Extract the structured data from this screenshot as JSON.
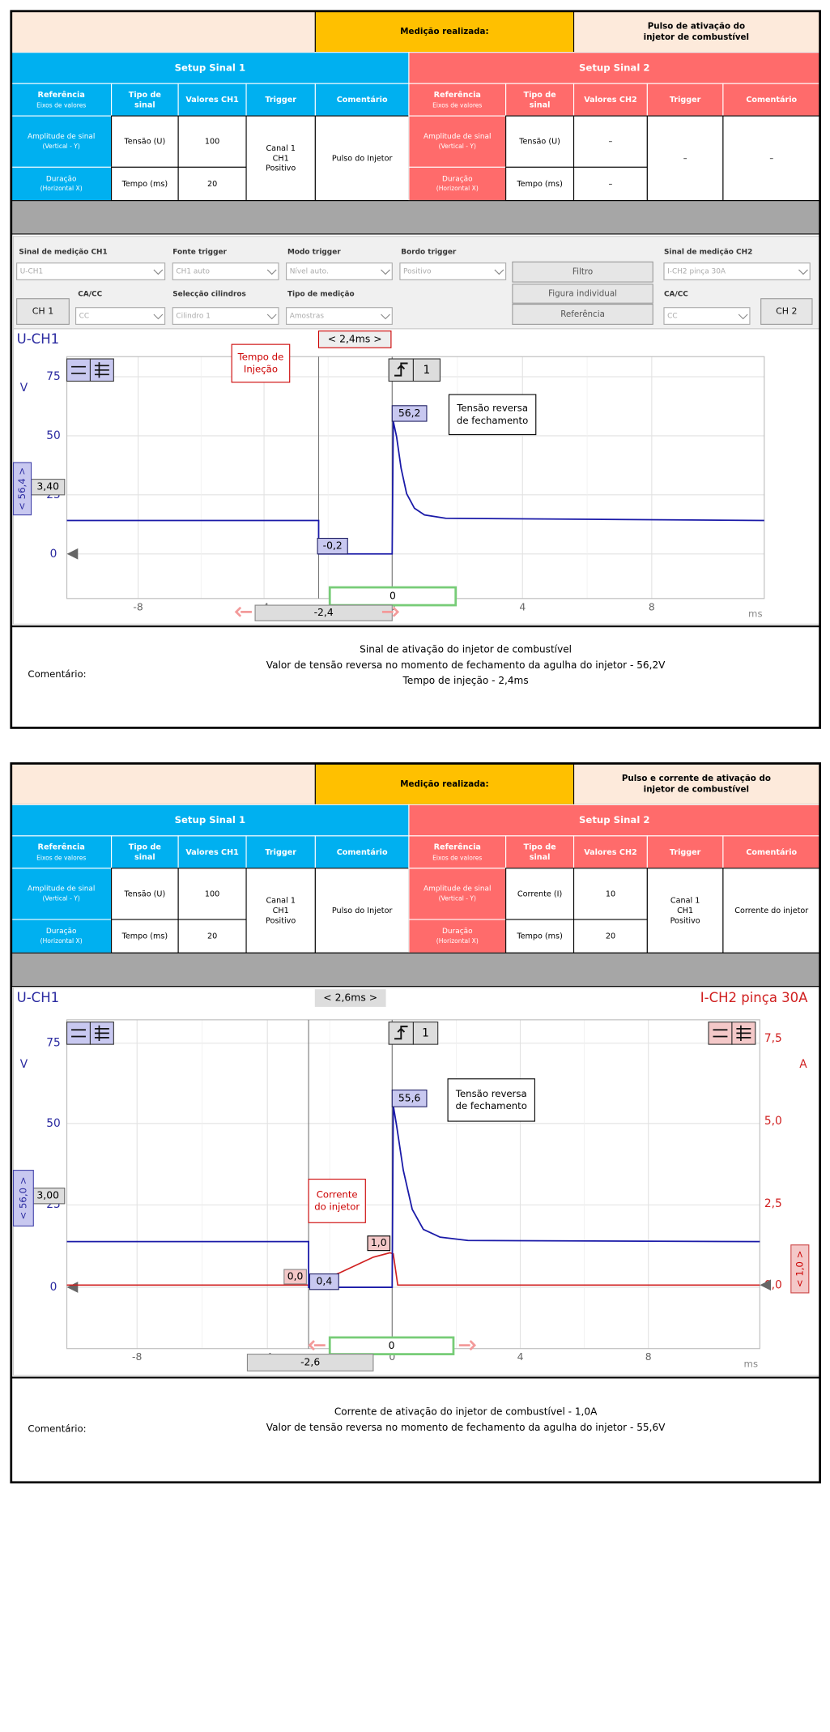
{
  "panels": [
    {
      "header": {
        "label": "Medição realizada:",
        "title": [
          "Pulso de ativação do",
          "injetor de combustível"
        ]
      },
      "signal1": {
        "title": "Setup Sinal 1",
        "head": {
          "ref": "Referência",
          "ref_sub": "Eixos de valores",
          "type": [
            "Tipo de",
            "sinal"
          ],
          "values": "Valores CH1",
          "trigger": "Trigger",
          "comment": "Comentário"
        },
        "rows": [
          {
            "ref": "Amplitude de sinal",
            "ref_sub": "(Vertical - Y)",
            "type": "Tensão (U)",
            "value": "100"
          },
          {
            "ref": "Duração",
            "ref_sub": "(Horizontal X)",
            "type": "Tempo (ms)",
            "value": "20"
          }
        ],
        "trigger": [
          "Canal 1",
          "CH1",
          "Positivo"
        ],
        "comment": "Pulso do Injetor"
      },
      "signal2": {
        "title": "Setup Sinal 2",
        "head": {
          "ref": "Referência",
          "ref_sub": "Eixos de valores",
          "type": [
            "Tipo de",
            "sinal"
          ],
          "values": "Valores CH2",
          "trigger": "Trigger",
          "comment": "Comentário"
        },
        "rows": [
          {
            "ref": "Amplitude de sinal",
            "ref_sub": "(Vertical - Y)",
            "type": "Tensão (U)",
            "value": "–"
          },
          {
            "ref": "Duração",
            "ref_sub": "(Horizontal X)",
            "type": "Tempo (ms)",
            "value": "–"
          }
        ],
        "trigger": "–",
        "comment": "–"
      },
      "controls": {
        "fields": [
          {
            "label": "Sinal de medição CH1",
            "value": "U-CH1"
          },
          {
            "label": "Fonte trigger",
            "value": "CH1 auto"
          },
          {
            "label": "Modo trigger",
            "value": "Nível auto."
          },
          {
            "label": "Bordo trigger",
            "value": "Positivo"
          },
          {
            "label": "Sinal de medição CH2",
            "value": "I-CH2 pinça 30A"
          },
          {
            "label": "CA/CC",
            "value": "CC"
          },
          {
            "label": "Selecção cilindros",
            "value": "Cilindro 1"
          },
          {
            "label": "Tipo de medição",
            "value": "Amostras"
          },
          {
            "label": "CA/CC",
            "value": "CC"
          }
        ],
        "buttons": [
          "Filtro",
          "Figura individual",
          "Referência",
          "CH 1",
          "CH 2"
        ]
      },
      "scope": {
        "ch1": "U-CH1",
        "unit": "V",
        "yticks": [
          "75",
          "50",
          "25",
          "0"
        ],
        "xticks": [
          "-8",
          "-4",
          "0",
          "4",
          "8"
        ],
        "xunit": "ms",
        "cursor": "< 2,4ms >",
        "note": [
          "Tempo de",
          "Injeção"
        ],
        "peak": "56,2",
        "peak_note": [
          "Tensão reversa",
          "de fechamento"
        ],
        "low": "-0,2",
        "trigger": "1",
        "scale": "< 56,4 >",
        "offset": "3,40",
        "center": "0",
        "delta": "-2,4"
      },
      "comment": {
        "label": "Comentário:",
        "lines": [
          "Sinal de ativação do injetor de combustível",
          "Valor de tensão reversa no momento de fechamento da agulha do injetor - 56,2V",
          "Tempo de injeção - 2,4ms"
        ]
      }
    },
    {
      "header": {
        "label": "Medição realizada:",
        "title": [
          "Pulso e corrente de ativação do",
          "injetor de combustível"
        ]
      },
      "signal1": {
        "title": "Setup Sinal 1",
        "head": {
          "ref": "Referência",
          "ref_sub": "Eixos de valores",
          "type": [
            "Tipo de",
            "sinal"
          ],
          "values": "Valores CH1",
          "trigger": "Trigger",
          "comment": "Comentário"
        },
        "rows": [
          {
            "ref": "Amplitude de sinal",
            "ref_sub": "(Vertical - Y)",
            "type": "Tensão (U)",
            "value": "100"
          },
          {
            "ref": "Duração",
            "ref_sub": "(Horizontal X)",
            "type": "Tempo (ms)",
            "value": "20"
          }
        ],
        "trigger": [
          "Canal 1",
          "CH1",
          "Positivo"
        ],
        "comment": "Pulso do Injetor"
      },
      "signal2": {
        "title": "Setup Sinal 2",
        "head": {
          "ref": "Referência",
          "ref_sub": "Eixos de valores",
          "type": [
            "Tipo de",
            "sinal"
          ],
          "values": "Valores CH2",
          "trigger": "Trigger",
          "comment": "Comentário"
        },
        "rows": [
          {
            "ref": "Amplitude de sinal",
            "ref_sub": "(Vertical - Y)",
            "type": "Corrente (I)",
            "value": "10"
          },
          {
            "ref": "Duração",
            "ref_sub": "(Horizontal X)",
            "type": "Tempo (ms)",
            "value": "20"
          }
        ],
        "trigger": [
          "Canal 1",
          "CH1",
          "Positivo"
        ],
        "comment": "Corrente do injetor"
      },
      "scope": {
        "ch1": "U-CH1",
        "ch2": "I-CH2 pinça 30A",
        "unit": "V",
        "unit2": "A",
        "yticks": [
          "75",
          "50",
          "25",
          "0"
        ],
        "y2ticks": [
          "7,5",
          "5,0",
          "2,5",
          "0,0"
        ],
        "xticks": [
          "-8",
          "-4",
          "0",
          "4",
          "8"
        ],
        "xunit": "ms",
        "cursor": "< 2,6ms >",
        "ch2_note": [
          "Corrente",
          "do injetor"
        ],
        "ch2_peak": "1,0",
        "ch2_low": "0,0",
        "peak": "55,6",
        "peak_note": [
          "Tensão reversa",
          "de fechamento"
        ],
        "low": "0,4",
        "trigger": "1",
        "scale": "< 56,0 >",
        "scale2": "< 1,0 >",
        "offset": "3,00",
        "center": "0",
        "delta": "-2,6"
      },
      "comment": {
        "label": "Comentário:",
        "lines": [
          "Corrente de ativação do injetor de combustível - 1,0A",
          "Valor de tensão reversa no momento de fechamento da agulha do injetor - 55,6V"
        ]
      }
    }
  ]
}
